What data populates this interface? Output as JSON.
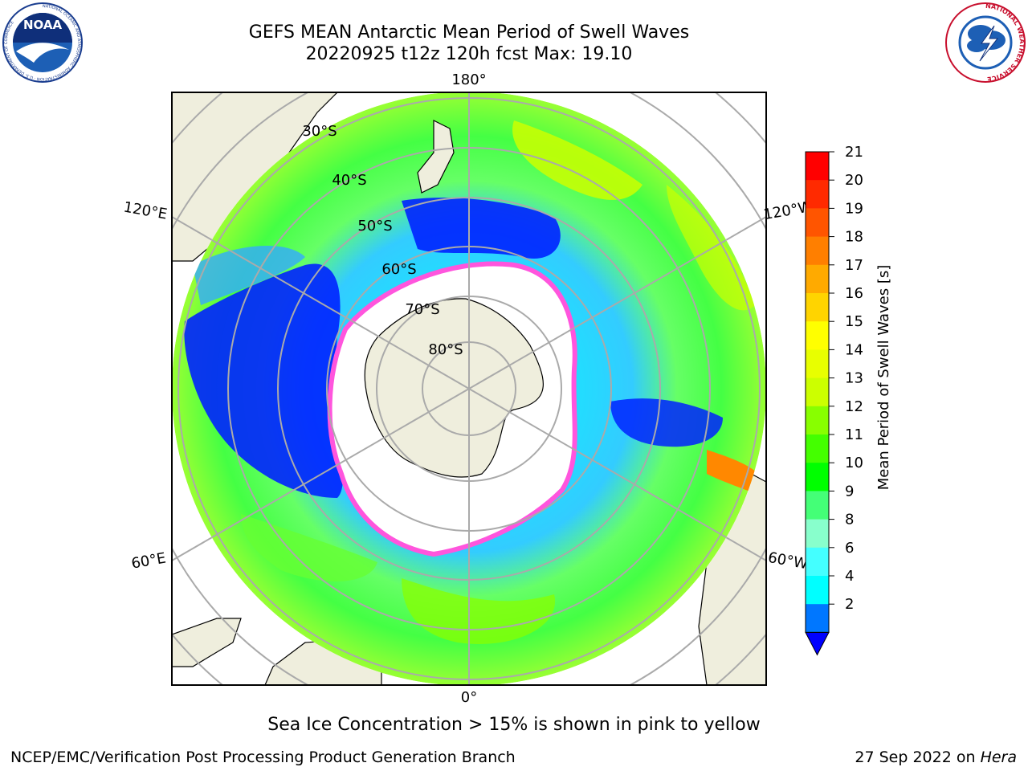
{
  "header": {
    "title_line1": "GEFS MEAN Antarctic Mean Period of Swell Waves",
    "title_line2": "20220925 t12z 120h fcst   Max: 19.10"
  },
  "logos": {
    "noaa_text": "NOAA",
    "noaa_ring_text": "NATIONAL OCEANIC AND ATMOSPHERIC ADMINISTRATION · U.S. DEPARTMENT OF COMMERCE",
    "nws_ring_text": "NATIONAL WEATHER SERVICE"
  },
  "map": {
    "projection": "south-polar-stereographic",
    "longitude_labels": {
      "top": "180°",
      "left_upper": "120°E",
      "right_upper": "120°W",
      "left_lower": "60°E",
      "right_lower": "60°W",
      "bottom": "0°"
    },
    "latitude_labels": [
      "30°S",
      "40°S",
      "50°S",
      "60°S",
      "70°S",
      "80°S"
    ]
  },
  "colorbar": {
    "label": "Mean Period of Swell Waves [s]",
    "ticks": [
      "21",
      "20",
      "19",
      "18",
      "17",
      "16",
      "15",
      "14",
      "13",
      "12",
      "11",
      "10",
      "9",
      "8",
      "6",
      "4",
      "2"
    ],
    "colors": [
      "#ff0000",
      "#ff2a00",
      "#ff5500",
      "#ff7f00",
      "#ffaa00",
      "#ffd400",
      "#ffff00",
      "#e8ff00",
      "#ccff00",
      "#88ff00",
      "#44ff00",
      "#00ff00",
      "#44ff77",
      "#88ffcc",
      "#44ffff",
      "#00ffff",
      "#0077ff",
      "#0000ff"
    ]
  },
  "caption": "Sea Ice Concentration > 15% is shown in pink to yellow",
  "footer": {
    "left": "NCEP/EMC/Verification Post Processing Product Generation Branch",
    "right_prefix": "27 Sep 2022 on ",
    "right_host": "Hera"
  }
}
